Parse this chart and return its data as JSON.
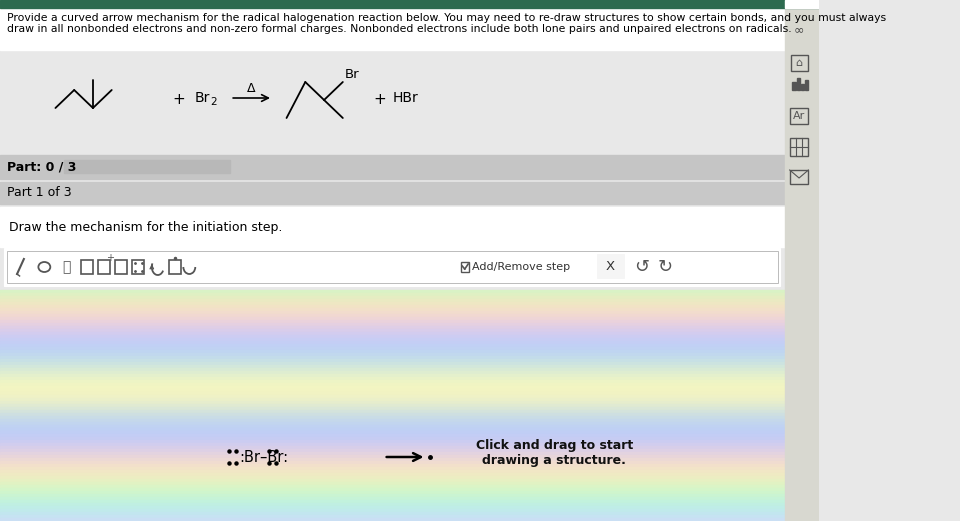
{
  "bg_top_color": "#2d6a4f",
  "bg_main_color": "#e8e8e8",
  "header_text_line1": "Provide a curved arrow mechanism for the radical halogenation reaction below. You may need to re-draw structures to show certain bonds, and you must always",
  "header_text_line2": "draw in all nonbonded electrons and non-zero formal charges. Nonbonded electrons include both lone pairs and unpaired electrons on radicals.",
  "header_fontsize": 7.8,
  "part03_text": "Part: 0 / 3",
  "part1of3_text": "Part 1 of 3",
  "draw_mechanism_text": "Draw the mechanism for the initiation step.",
  "progress_bar_color": "#b8b8b8",
  "part_bar1_bg": "#c8c8c8",
  "part_bar2_bg": "#cccccc",
  "white_bg": "#ffffff",
  "toolbar_border": "#aaaaaa",
  "br2_label": ":Br–Br:",
  "click_drag_text": "Click and drag to start\ndrawing a structure.",
  "right_panel_color": "#d8d8d0",
  "green_bar_color": "#2d6a4f",
  "bottom_wavy_colors": [
    "#e8f0e8",
    "#e0e8f0",
    "#f0e8e8",
    "#e8e8f0",
    "#f0f0e8"
  ]
}
